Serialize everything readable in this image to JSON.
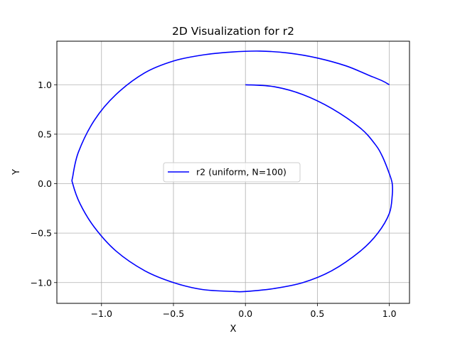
{
  "chart_data": {
    "type": "line",
    "title": "2D Visualization for r2",
    "xlabel": "X",
    "ylabel": "Y",
    "xlim": [
      -1.31,
      1.14
    ],
    "ylim": [
      -1.21,
      1.44
    ],
    "xticks": [
      -1.0,
      -0.5,
      0.0,
      0.5,
      1.0
    ],
    "xtick_labels": [
      "−1.0",
      "−0.5",
      "0.0",
      "0.5",
      "1.0"
    ],
    "yticks": [
      -1.0,
      -0.5,
      0.0,
      0.5,
      1.0
    ],
    "ytick_labels": [
      "−1.0",
      "−0.5",
      "0.0",
      "0.5",
      "1.0"
    ],
    "grid": true,
    "legend_position": "center",
    "series": [
      {
        "name": "r2 (uniform, N=100)",
        "color": "#0000ff",
        "x": [
          0.0,
          0.2,
          0.4,
          0.6,
          0.8,
          0.9,
          0.95,
          1.0,
          1.02,
          1.02,
          1.0,
          0.92,
          0.8,
          0.6,
          0.4,
          0.2,
          0.0,
          -0.08,
          -0.3,
          -0.5,
          -0.7,
          -0.9,
          -1.05,
          -1.15,
          -1.2,
          -1.2,
          -1.16,
          -1.05,
          -0.9,
          -0.7,
          -0.5,
          -0.3,
          -0.1,
          0.1,
          0.3,
          0.5,
          0.7,
          0.85,
          0.95,
          1.0
        ],
        "y": [
          1.0,
          0.98,
          0.9,
          0.76,
          0.56,
          0.4,
          0.28,
          0.1,
          0.0,
          -0.12,
          -0.3,
          -0.5,
          -0.68,
          -0.88,
          -1.0,
          -1.06,
          -1.09,
          -1.09,
          -1.07,
          -1.0,
          -0.88,
          -0.68,
          -0.44,
          -0.2,
          0.0,
          0.07,
          0.32,
          0.64,
          0.9,
          1.12,
          1.24,
          1.3,
          1.33,
          1.34,
          1.32,
          1.27,
          1.19,
          1.1,
          1.04,
          1.0
        ]
      }
    ]
  }
}
